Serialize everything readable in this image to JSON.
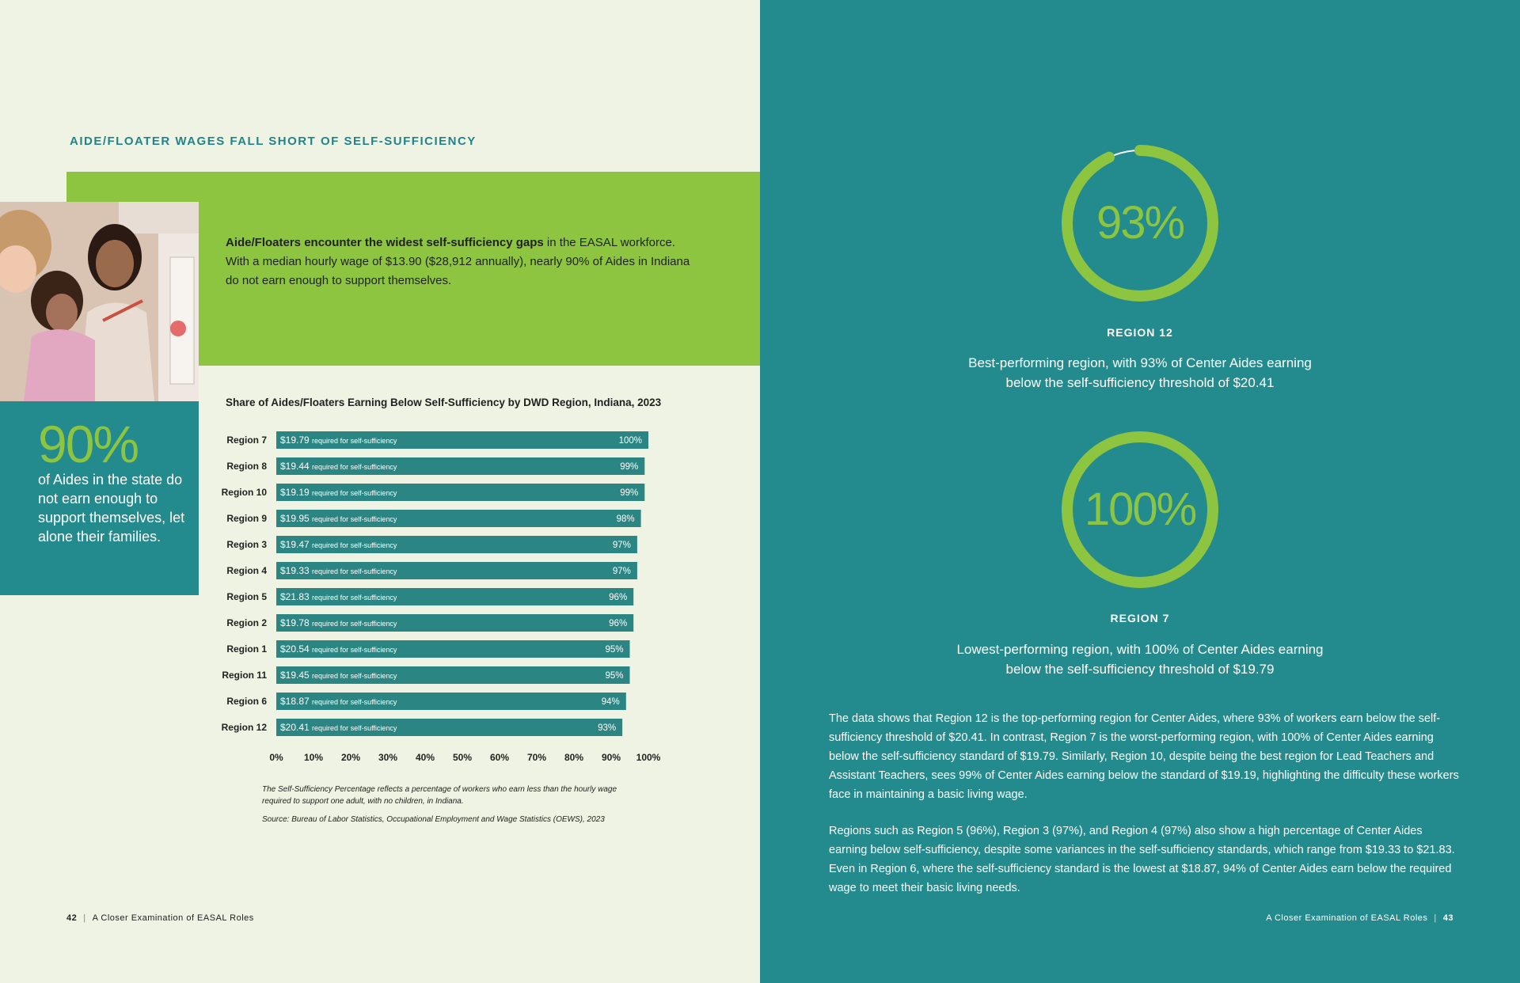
{
  "left": {
    "section_title": "AIDE/FLOATER WAGES FALL SHORT OF SELF-SUFFICIENCY",
    "intro_bold": "Aide/Floaters encounter the widest self-sufficiency gaps",
    "intro_rest": " in the EASAL workforce. With a median hourly wage of $13.90 ($28,912 annually), nearly 90% of Aides in Indiana do not earn enough to support themselves.",
    "stat_value": "90%",
    "stat_text": "of Aides in the state do not earn enough to support themselves, let alone their families.",
    "footnote": "The Self-Sufficiency Percentage reflects a percentage of workers who earn less than the hourly wage required to support one adult, with no children, in Indiana.",
    "source": "Source: Bureau of Labor Statistics, Occupational Employment and Wage Statistics (OEWS), 2023",
    "page_number": "42",
    "footer_text": "A Closer Examination of EASAL Roles"
  },
  "chart_data": {
    "type": "bar",
    "orientation": "horizontal",
    "title": "Share of Aides/Floaters Earning Below Self-Sufficiency by DWD Region, Indiana, 2023",
    "categories": [
      "Region 7",
      "Region 8",
      "Region 10",
      "Region 9",
      "Region 3",
      "Region 4",
      "Region 5",
      "Region 2",
      "Region 1",
      "Region 11",
      "Region 6",
      "Region 12"
    ],
    "values": [
      100,
      99,
      99,
      98,
      97,
      97,
      96,
      96,
      95,
      95,
      94,
      93
    ],
    "value_labels": [
      "100%",
      "99%",
      "99%",
      "98%",
      "97%",
      "97%",
      "96%",
      "96%",
      "95%",
      "95%",
      "94%",
      "93%"
    ],
    "wages": [
      "$19.79",
      "$19.44",
      "$19.19",
      "$19.95",
      "$19.47",
      "$19.33",
      "$21.83",
      "$19.78",
      "$20.54",
      "$19.45",
      "$18.87",
      "$20.41"
    ],
    "wage_suffix": "required for self-sufficiency",
    "xlim": [
      0,
      100
    ],
    "x_ticks": [
      "0%",
      "10%",
      "20%",
      "30%",
      "40%",
      "50%",
      "60%",
      "70%",
      "80%",
      "90%",
      "100%"
    ],
    "bar_color": "#2a8583",
    "grid": false
  },
  "right": {
    "best": {
      "pct": "93%",
      "value": 93,
      "region": "REGION 12",
      "line1": "Best-performing region, with 93% of Center Aides earning",
      "line2": "below the self-sufficiency threshold of $20.41"
    },
    "worst": {
      "pct": "100%",
      "value": 100,
      "region": "REGION 7",
      "line1": "Lowest-performing region, with 100% of Center Aides earning",
      "line2": "below the self-sufficiency threshold of $19.79"
    },
    "para1": "The data shows that Region 12 is the top-performing region for Center Aides, where 93% of workers earn below the self-sufficiency threshold of $20.41. In contrast, Region 7 is the worst-performing region, with 100% of Center Aides earning below the self-sufficiency standard of $19.79. Similarly, Region 10, despite being the best region for Lead Teachers and Assistant Teachers, sees 99% of Center Aides earning below the standard of $19.19, highlighting the difficulty these workers face in maintaining a basic living wage.",
    "para2": "Regions such as Region 5 (96%), Region 3 (97%), and Region 4 (97%) also show a high percentage of Center Aides earning below self-sufficiency, despite some variances in the self-sufficiency standards, which range from $19.33 to $21.83. Even in Region 6, where the self-sufficiency standard is the lowest at $18.87, 94% of Center Aides earn below the required wage to meet their basic living needs.",
    "footer_text": "A Closer Examination of EASAL Roles",
    "page_number": "43"
  },
  "colors": {
    "teal": "#238b8d",
    "green": "#8dc540",
    "cream": "#eef3e3"
  }
}
